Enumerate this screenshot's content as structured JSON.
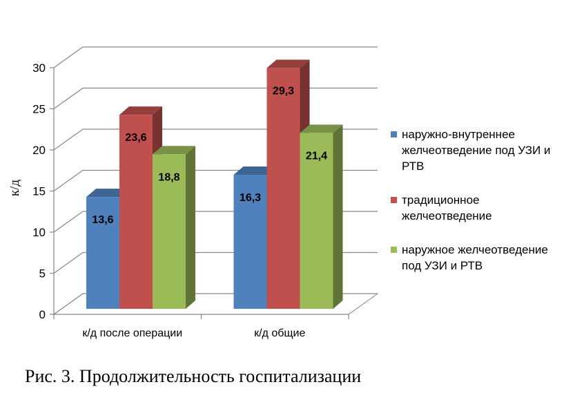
{
  "chart_data": {
    "type": "bar",
    "categories": [
      "к/д после операции",
      "к/д общие"
    ],
    "series": [
      {
        "name": "наружно-внутреннее желчеотведение под УЗИ и РТВ",
        "values": [
          13.6,
          16.3
        ],
        "labels": [
          "13,6",
          "16,3"
        ],
        "color": "#4F81BD"
      },
      {
        "name": "традиционное желчеотведение",
        "values": [
          23.6,
          29.3
        ],
        "labels": [
          "23,6",
          "29,3"
        ],
        "color": "#C0504D"
      },
      {
        "name": "наружное желчеотведение под УЗИ и РТВ",
        "values": [
          18.8,
          21.4
        ],
        "labels": [
          "18,8",
          "21,4"
        ],
        "color": "#9BBB59"
      }
    ],
    "ylabel": "к/д",
    "ylim": [
      0,
      30
    ],
    "yticks": [
      0,
      5,
      10,
      15,
      20,
      25,
      30
    ],
    "grid": true,
    "legend": "right"
  },
  "caption": "Рис. 3. Продолжительность госпитализации"
}
